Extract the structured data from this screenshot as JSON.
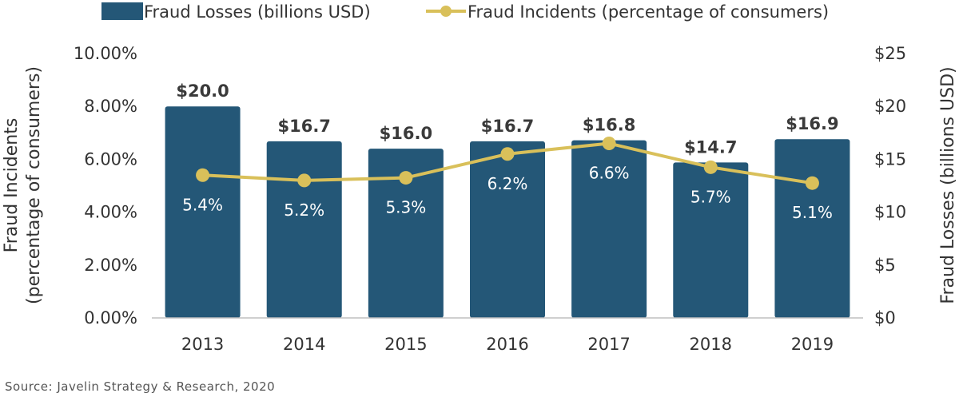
{
  "chart_data": {
    "type": "bar",
    "categories": [
      "2013",
      "2014",
      "2015",
      "2016",
      "2017",
      "2018",
      "2019"
    ],
    "series": [
      {
        "name": "Fraud Losses (billions USD)",
        "kind": "bar",
        "axis": "right",
        "values": [
          20.0,
          16.7,
          16.0,
          16.7,
          16.8,
          14.7,
          16.9
        ],
        "data_labels": [
          "$20.0",
          "$16.7",
          "$16.0",
          "$16.7",
          "$16.8",
          "$14.7",
          "$16.9"
        ],
        "color": "#245777"
      },
      {
        "name": "Fraud Incidents (percentage of consumers)",
        "kind": "line",
        "axis": "left",
        "values": [
          5.4,
          5.2,
          5.3,
          6.2,
          6.6,
          5.7,
          5.1
        ],
        "data_labels": [
          "5.4%",
          "5.2%",
          "5.3%",
          "6.2%",
          "6.6%",
          "5.7%",
          "5.1%"
        ],
        "color": "#d9c05a"
      }
    ],
    "y_left": {
      "label_line1": "Fraud Incidents",
      "label_line2": "(percentage of consumers)",
      "range": [
        0,
        10
      ],
      "ticks": [
        0,
        2,
        4,
        6,
        8,
        10
      ],
      "tick_labels": [
        "0.00%",
        "2.00%",
        "4.00%",
        "6.00%",
        "8.00%",
        "10.00%"
      ]
    },
    "y_right": {
      "label": "Fraud Losses (billions USD)",
      "range": [
        0,
        25
      ],
      "ticks": [
        0,
        5,
        10,
        15,
        20,
        25
      ],
      "tick_labels": [
        "$0",
        "$5",
        "$10",
        "$15",
        "$20",
        "$25"
      ]
    },
    "grid": false,
    "legend_position": "top"
  },
  "source": "Source:  Javelin Strategy & Research, 2020"
}
